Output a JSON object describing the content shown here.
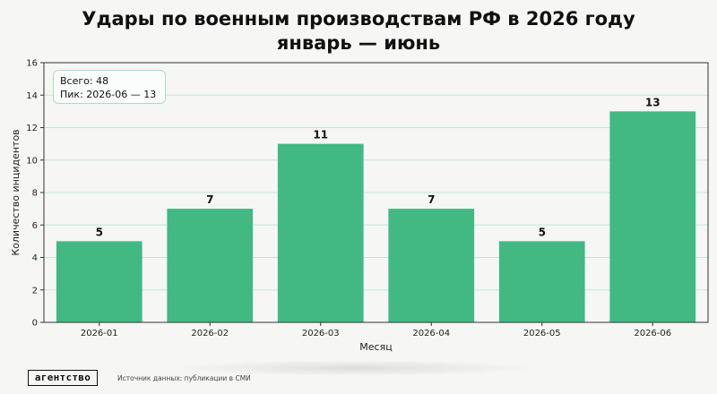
{
  "title_line1": "Удары по военным производствам РФ в 2026 году",
  "title_line2": "январь — июнь",
  "summary": {
    "total": "Всего: 48",
    "peak": "Пик: 2026-06 — 13"
  },
  "footer": {
    "logo": "агентство",
    "source": "Источник данных: публикации в СМИ"
  },
  "colors": {
    "bar": "#42b883",
    "grid": "#bfe8d4",
    "axis": "#333333"
  },
  "chart_data": {
    "type": "bar",
    "categories": [
      "2026-01",
      "2026-02",
      "2026-03",
      "2026-04",
      "2026-05",
      "2026-06"
    ],
    "values": [
      5,
      7,
      11,
      7,
      5,
      13
    ],
    "xlabel": "Месяц",
    "ylabel": "Количество инцидентов",
    "ylim": [
      0,
      16
    ],
    "yticks": [
      0,
      2,
      4,
      6,
      8,
      10,
      12,
      14,
      16
    ],
    "grid": true
  }
}
